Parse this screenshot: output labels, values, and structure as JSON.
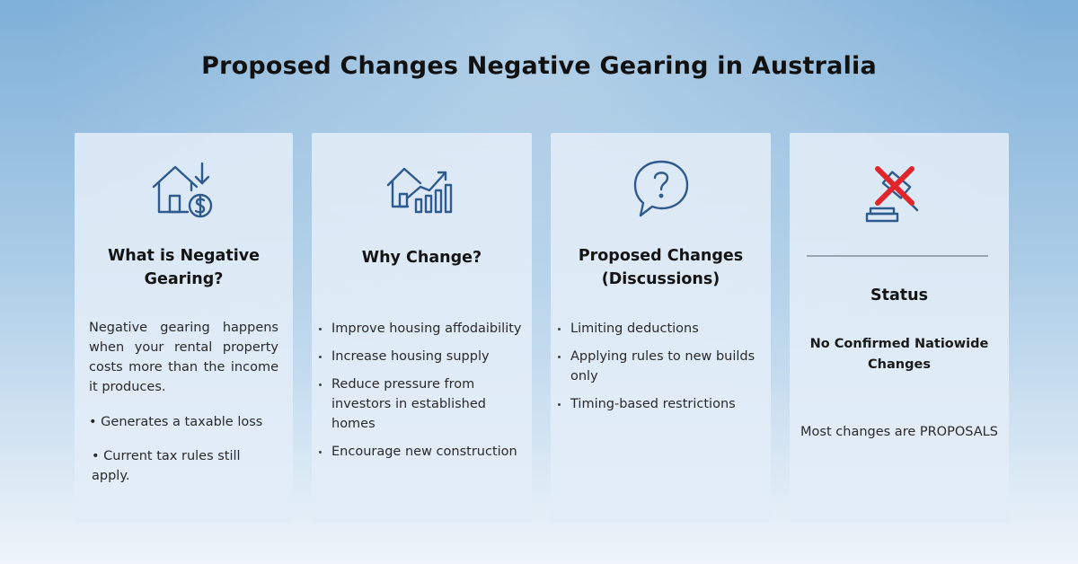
{
  "title": "Proposed Changes Negative Gearing in Australia",
  "colors": {
    "icon_blue": "#2f5a8e",
    "cross_red": "#e0262b"
  },
  "cards": [
    {
      "icon": "house-dollar-down-icon",
      "title": "What is Negative Gearing?",
      "body": "Negative gearing happens when your rental property costs more than the income it produces.",
      "bullets": [
        "• Generates a taxable loss",
        "• Current tax rules still apply."
      ]
    },
    {
      "icon": "house-chart-up-icon",
      "title": "Why Change?",
      "bullets": [
        "Improve housing affodaibility",
        "Increase housing supply",
        "Reduce pressure from investors in established homes",
        "Encourage new construction"
      ]
    },
    {
      "icon": "question-bubble-icon",
      "title": "Proposed Changes (Discussions)",
      "bullets": [
        "Limiting deductions",
        "Applying rules to new builds only",
        "Timing-based restrictions"
      ]
    },
    {
      "icon": "gavel-crossed-icon",
      "title": "Status",
      "subtitle": "No Confirmed Natiowide Changes",
      "note": "Most changes are PROPOSALS"
    }
  ]
}
